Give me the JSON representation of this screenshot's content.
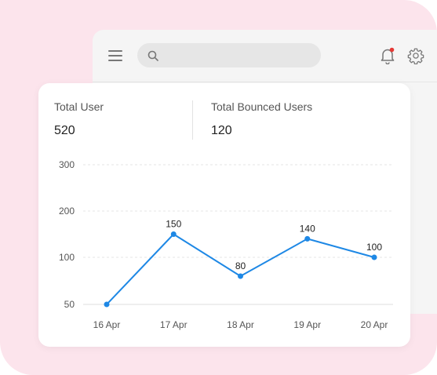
{
  "colors": {
    "frame_bg": "#fce4ec",
    "accent": "#1e88e5",
    "notification_dot": "#e53935"
  },
  "topbar": {
    "search": {
      "placeholder": "",
      "value": ""
    },
    "icons": [
      "menu-icon",
      "search-icon",
      "bell-icon",
      "gear-icon"
    ],
    "notification_badge": true
  },
  "stats": [
    {
      "label": "Total User",
      "value": "520"
    },
    {
      "label": "Total Bounced Users",
      "value": "120"
    }
  ],
  "chart_data": {
    "type": "line",
    "categories": [
      "16 Apr",
      "17 Apr",
      "18 Apr",
      "19 Apr",
      "20 Apr"
    ],
    "values": [
      50,
      150,
      80,
      140,
      100
    ],
    "data_labels": [
      "",
      "150",
      "80",
      "140",
      "100"
    ],
    "y_ticks": [
      50,
      100,
      200,
      300
    ],
    "ylim": [
      50,
      300
    ],
    "grid": true,
    "color": "#1e88e5"
  }
}
